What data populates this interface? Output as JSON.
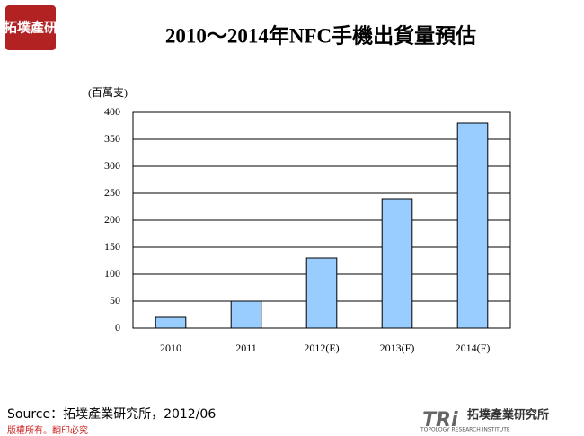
{
  "logo": "拓墣產研",
  "chart_data": {
    "type": "bar",
    "title": "2010～2014年NFC手機出貨量預估",
    "y_label": "(百萬支)",
    "categories": [
      "2010",
      "2011",
      "2012(E)",
      "2013(F)",
      "2014(F)"
    ],
    "values": [
      20,
      50,
      130,
      240,
      380
    ],
    "color": "#99ccff",
    "ylim": [
      0,
      400
    ],
    "yticks": [
      0,
      50,
      100,
      150,
      200,
      250,
      300,
      350,
      400
    ],
    "grid": true
  },
  "source": "Source：拓墣產業研究所，2012/06",
  "copyright": "版權所有。翻印必究",
  "brand": {
    "mark": "TRi",
    "name": "拓墣產業研究所",
    "english": "TOPOLOGY RESEARCH INSTITUTE"
  }
}
